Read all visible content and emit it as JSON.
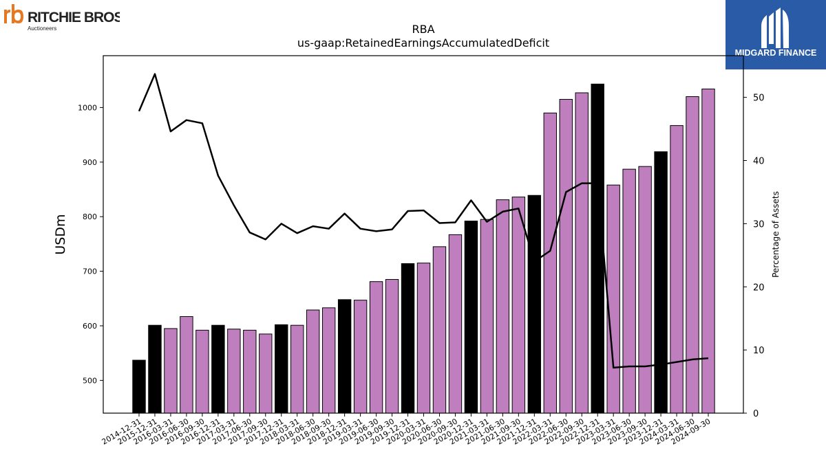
{
  "brand_left": {
    "name": "RITCHIE BROS.",
    "tagline": "Auctioneers",
    "mark_color": "#e87722"
  },
  "brand_right": {
    "name": "MIDGARD FINANCE",
    "bg_color": "#2a5ba6"
  },
  "colors": {
    "quarter_bar": "#bf7fbf",
    "year_end_bar": "#000000",
    "line": "#000000"
  },
  "chart_data": {
    "type": "bar",
    "title": "RBA",
    "subtitle": "us-gaap:RetainedEarningsAccumulatedDeficit",
    "ylabel": "USDm",
    "y2label": "Percentage of Assets",
    "ylim": [
      440,
      1095
    ],
    "y2lim": [
      0,
      56.6
    ],
    "yticks": [
      500,
      600,
      700,
      800,
      900,
      1000
    ],
    "y2ticks": [
      0,
      10,
      20,
      30,
      40,
      50
    ],
    "categories": [
      "2014-12-31",
      "2015-12-31",
      "2016-03-31",
      "2016-06-30",
      "2016-09-30",
      "2016-12-31",
      "2017-03-31",
      "2017-06-30",
      "2017-09-30",
      "2017-12-31",
      "2018-03-31",
      "2018-06-30",
      "2018-09-30",
      "2018-12-31",
      "2019-03-31",
      "2019-06-30",
      "2019-09-30",
      "2019-12-31",
      "2020-03-31",
      "2020-06-30",
      "2020-09-30",
      "2020-12-31",
      "2021-03-31",
      "2021-06-30",
      "2021-09-30",
      "2021-12-31",
      "2022-03-31",
      "2022-06-30",
      "2022-09-30",
      "2022-12-31",
      "2023-03-31",
      "2023-06-30",
      "2023-09-30",
      "2023-12-31",
      "2024-03-31",
      "2024-06-30",
      "2024-09-30"
    ],
    "series": [
      {
        "values": [
          537,
          601,
          595,
          617,
          592,
          601,
          594,
          592,
          585,
          602,
          601,
          629,
          633,
          648,
          647,
          681,
          685,
          714,
          715,
          745,
          767,
          792,
          795,
          831,
          836,
          839,
          990,
          1015,
          1027,
          1043,
          858,
          887,
          892,
          919,
          967,
          1020,
          1034
        ],
        "year_end": [
          true,
          true,
          false,
          false,
          false,
          true,
          false,
          false,
          false,
          true,
          false,
          false,
          false,
          true,
          false,
          false,
          false,
          true,
          false,
          false,
          false,
          true,
          false,
          false,
          false,
          true,
          false,
          false,
          false,
          true,
          false,
          false,
          false,
          true,
          false,
          false,
          false
        ]
      },
      {
        "axis": "secondary",
        "values": [
          47.8,
          53.7,
          44.6,
          46.4,
          45.9,
          37.6,
          32.9,
          28.6,
          27.5,
          30.0,
          28.5,
          29.6,
          29.2,
          31.6,
          29.2,
          28.8,
          29.1,
          32.0,
          32.1,
          30.1,
          30.2,
          33.7,
          30.3,
          31.9,
          32.4,
          24.0,
          25.7,
          35.0,
          36.4,
          36.4,
          7.2,
          7.4,
          7.4,
          7.7,
          8.1,
          8.5,
          8.7
        ]
      }
    ]
  }
}
